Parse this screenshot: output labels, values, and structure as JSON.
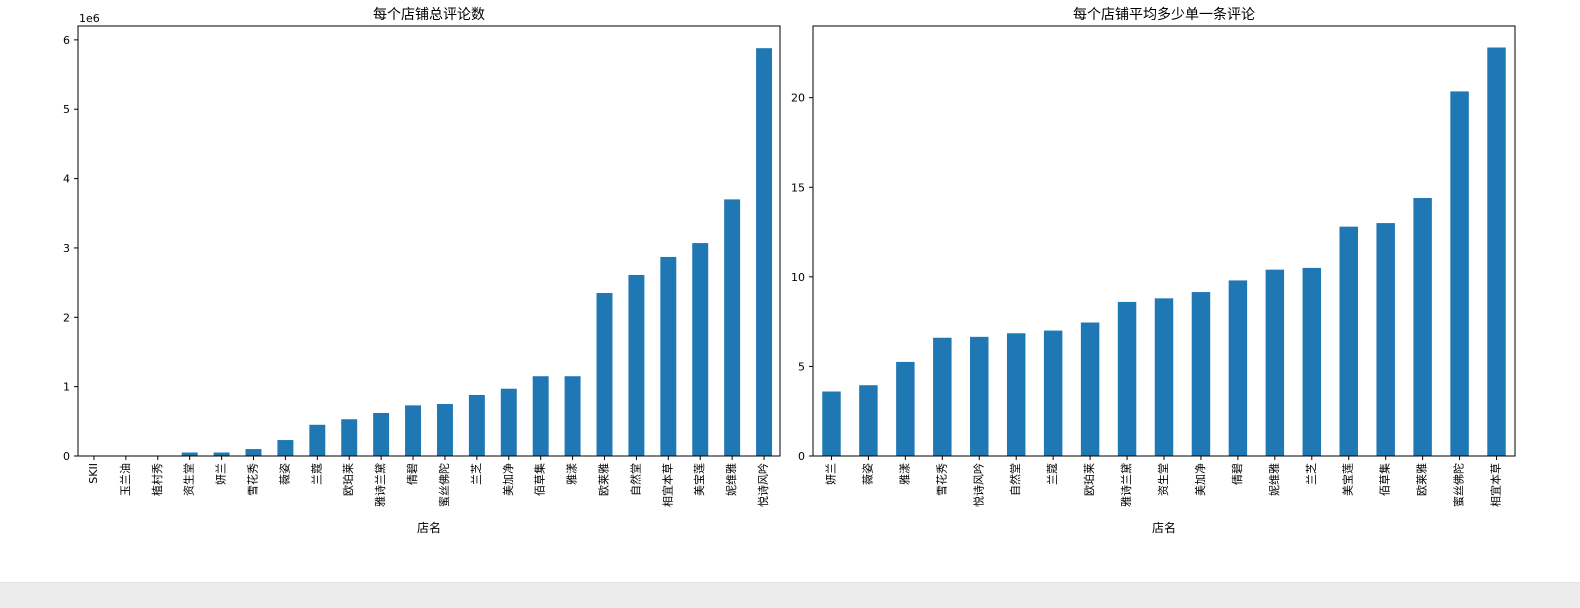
{
  "chart_data": [
    {
      "type": "bar",
      "title": "每个店铺总评论数",
      "xlabel": "店名",
      "ylabel": "",
      "offset_label": "1e6",
      "ylim": [
        0,
        6.2
      ],
      "ytick_values": [
        0,
        1,
        2,
        3,
        4,
        5,
        6
      ],
      "color": "#1f77b4",
      "categories": [
        "SKII",
        "玉兰油",
        "植村秀",
        "资生堂",
        "妍兰",
        "雪花秀",
        "薇姿",
        "兰蔻",
        "欧珀莱",
        "雅诗兰黛",
        "倩碧",
        "蜜丝佛陀",
        "兰芝",
        "美加净",
        "佰草集",
        "雅漾",
        "欧莱雅",
        "自然堂",
        "相宜本草",
        "美宝莲",
        "妮维雅",
        "悦诗风吟"
      ],
      "values": [
        0.0,
        0.0,
        0.0,
        0.05,
        0.05,
        0.1,
        0.23,
        0.45,
        0.53,
        0.62,
        0.73,
        0.75,
        0.88,
        0.97,
        1.15,
        1.15,
        2.35,
        2.61,
        2.87,
        3.07,
        3.7,
        5.88
      ]
    },
    {
      "type": "bar",
      "title": "每个店铺平均多少单一条评论",
      "xlabel": "店名",
      "ylabel": "",
      "ylim": [
        0,
        24
      ],
      "ytick_values": [
        0,
        5,
        10,
        15,
        20
      ],
      "color": "#1f77b4",
      "categories": [
        "妍兰",
        "薇姿",
        "雅漾",
        "雪花秀",
        "悦诗风吟",
        "自然堂",
        "兰蔻",
        "欧珀莱",
        "雅诗兰黛",
        "资生堂",
        "美加净",
        "倩碧",
        "妮维雅",
        "兰芝",
        "美宝莲",
        "佰草集",
        "欧莱雅",
        "蜜丝佛陀",
        "相宜本草"
      ],
      "values": [
        3.6,
        3.95,
        5.25,
        6.6,
        6.65,
        6.85,
        7.0,
        7.45,
        8.6,
        8.8,
        9.15,
        9.8,
        10.4,
        10.5,
        12.8,
        13.0,
        14.4,
        20.35,
        22.8
      ]
    }
  ]
}
